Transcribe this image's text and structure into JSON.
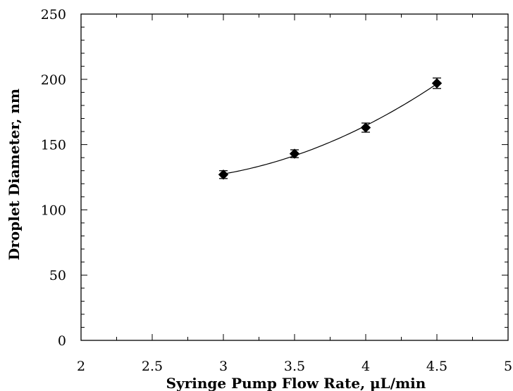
{
  "chart_data": {
    "type": "scatter",
    "title": "",
    "xlabel": "Syringe Pump Flow Rate, μL/min",
    "ylabel": "Droplet Diameter, nm",
    "xlim": [
      2,
      5
    ],
    "ylim": [
      0,
      250
    ],
    "x_ticks": [
      "2",
      "2.5",
      "3",
      "3.5",
      "4",
      "4.5",
      "5"
    ],
    "y_ticks": [
      "0",
      "50",
      "100",
      "150",
      "200",
      "250"
    ],
    "grid": false,
    "legend": "none",
    "series": [
      {
        "x": [
          3,
          3.5,
          4,
          4.5
        ],
        "y": [
          127,
          143,
          163,
          197
        ],
        "y_error": [
          3,
          3,
          3.5,
          4
        ],
        "marker": "diamond",
        "color": "#000000",
        "trendline": "smooth curve"
      }
    ]
  }
}
